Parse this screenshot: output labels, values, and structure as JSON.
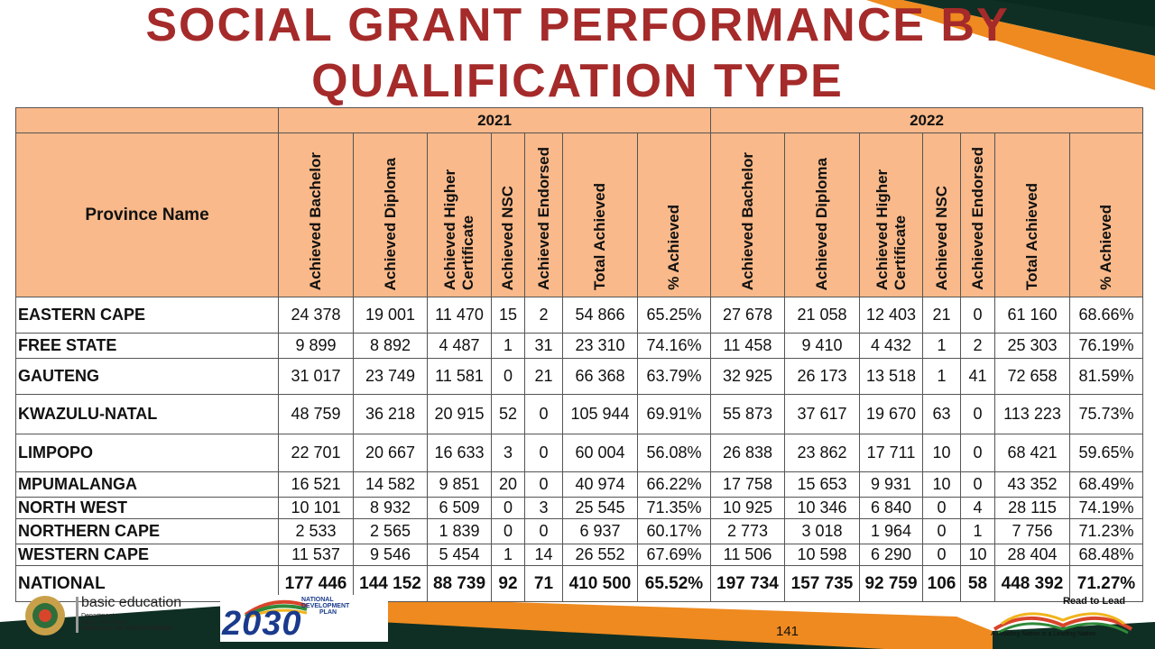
{
  "title": {
    "line1": "SOCIAL GRANT PERFORMANCE BY",
    "line2": "QUALIFICATION TYPE"
  },
  "table": {
    "province_header": "Province Name",
    "years": [
      "2021",
      "2022"
    ],
    "columns": [
      "Achieved Bachelor",
      "Achieved Diploma",
      "Achieved Higher Certificate",
      "Achieved NSC",
      "Achieved Endorsed",
      "Total Achieved",
      "% Achieved"
    ],
    "rows": [
      {
        "name": "EASTERN CAPE",
        "y2021": [
          "24 378",
          "19 001",
          "11 470",
          "15",
          "2",
          "54 866",
          "65.25%"
        ],
        "y2022": [
          "27 678",
          "21 058",
          "12 403",
          "21",
          "0",
          "61 160",
          "68.66%"
        ]
      },
      {
        "name": "FREE STATE",
        "y2021": [
          "9 899",
          "8 892",
          "4 487",
          "1",
          "31",
          "23 310",
          "74.16%"
        ],
        "y2022": [
          "11 458",
          "9 410",
          "4 432",
          "1",
          "2",
          "25 303",
          "76.19%"
        ]
      },
      {
        "name": "GAUTENG",
        "y2021": [
          "31 017",
          "23 749",
          "11 581",
          "0",
          "21",
          "66 368",
          "63.79%"
        ],
        "y2022": [
          "32 925",
          "26 173",
          "13 518",
          "1",
          "41",
          "72 658",
          "81.59%"
        ]
      },
      {
        "name": "KWAZULU-NATAL",
        "y2021": [
          "48 759",
          "36 218",
          "20 915",
          "52",
          "0",
          "105 944",
          "69.91%"
        ],
        "y2022": [
          "55 873",
          "37 617",
          "19 670",
          "63",
          "0",
          "113 223",
          "75.73%"
        ]
      },
      {
        "name": "LIMPOPO",
        "y2021": [
          "22 701",
          "20 667",
          "16 633",
          "3",
          "0",
          "60 004",
          "56.08%"
        ],
        "y2022": [
          "26 838",
          "23 862",
          "17 711",
          "10",
          "0",
          "68 421",
          "59.65%"
        ]
      },
      {
        "name": "MPUMALANGA",
        "y2021": [
          "16 521",
          "14 582",
          "9 851",
          "20",
          "0",
          "40 974",
          "66.22%"
        ],
        "y2022": [
          "17 758",
          "15 653",
          "9 931",
          "10",
          "0",
          "43 352",
          "68.49%"
        ]
      },
      {
        "name": "NORTH WEST",
        "y2021": [
          "10 101",
          "8 932",
          "6 509",
          "0",
          "3",
          "25 545",
          "71.35%"
        ],
        "y2022": [
          "10 925",
          "10 346",
          "6 840",
          "0",
          "4",
          "28 115",
          "74.19%"
        ]
      },
      {
        "name": "NORTHERN CAPE",
        "y2021": [
          "2 533",
          "2 565",
          "1 839",
          "0",
          "0",
          "6 937",
          "60.17%"
        ],
        "y2022": [
          "2 773",
          "3 018",
          "1 964",
          "0",
          "1",
          "7 756",
          "71.23%"
        ]
      },
      {
        "name": "WESTERN CAPE",
        "y2021": [
          "11 537",
          "9 546",
          "5 454",
          "1",
          "14",
          "26 552",
          "67.69%"
        ],
        "y2022": [
          "11 506",
          "10 598",
          "6 290",
          "0",
          "10",
          "28 404",
          "68.48%"
        ]
      },
      {
        "name": "NATIONAL",
        "y2021": [
          "177 446",
          "144 152",
          "88 739",
          "92",
          "71",
          "410 500",
          "65.52%"
        ],
        "y2022": [
          "197 734",
          "157 735",
          "92 759",
          "106",
          "58",
          "448 392",
          "71.27%"
        ]
      }
    ]
  },
  "footer": {
    "dbe_name": "basic education",
    "dbe_line1": "Department:",
    "dbe_line2": "Basic Education",
    "dbe_line3": "REPUBLIC OF SOUTH AFRICA",
    "ndp_line1": "NATIONAL",
    "ndp_line2": "DEVELOPMENT",
    "ndp_line3": "PLAN",
    "ndp_year": "2030",
    "page_number": "141",
    "rtl_title": "Read to Lead",
    "rtl_tagline": "A Reading Nation is a Leading Nation"
  },
  "colors": {
    "title": "#a52a2a",
    "header_fill": "#f9b98a",
    "orange": "#ee8a1f",
    "dark_green": "#0f2f24",
    "ndp_blue": "#1a3a8c"
  }
}
